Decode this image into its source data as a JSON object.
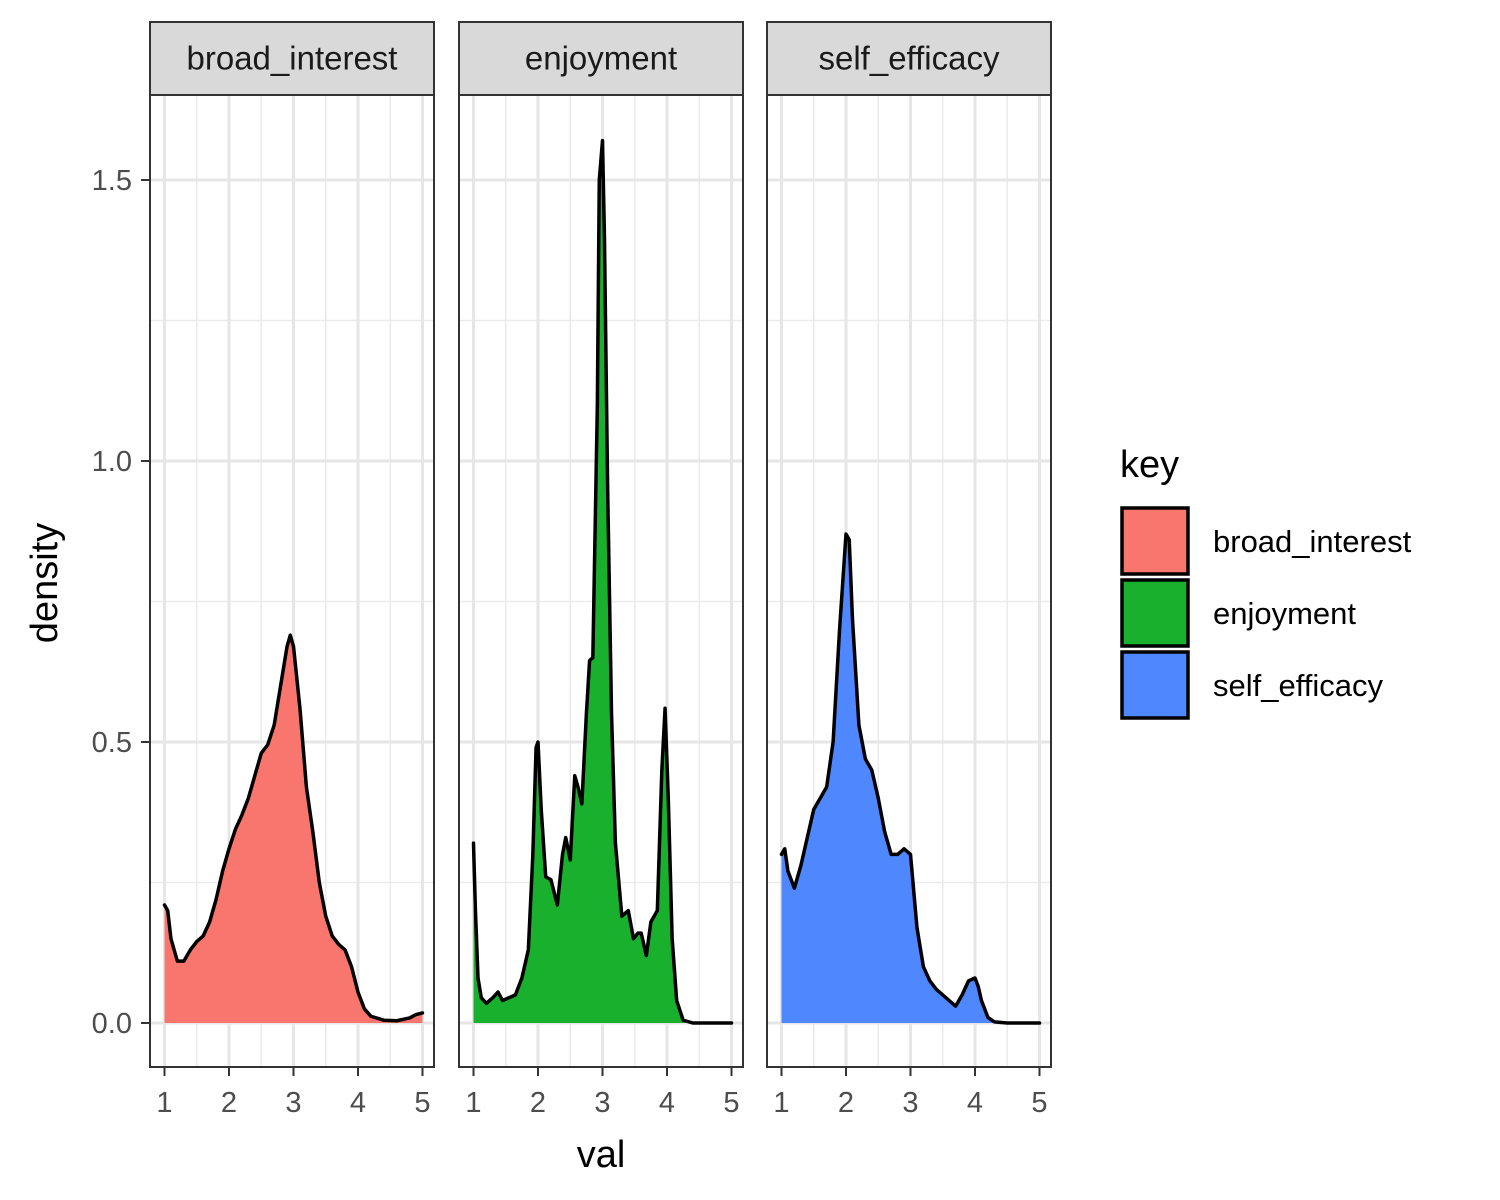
{
  "chart_data": {
    "type": "area",
    "xlabel": "val",
    "ylabel": "density",
    "xlim": [
      1,
      5
    ],
    "ylim": [
      0,
      1.65
    ],
    "x_ticks": [
      "1",
      "2",
      "3",
      "4",
      "5"
    ],
    "y_ticks": [
      "0.0",
      "0.5",
      "1.0",
      "1.5"
    ],
    "grid": true,
    "legend": {
      "title": "key",
      "position": "right"
    },
    "panels": [
      {
        "name": "broad_interest",
        "color": "#F8766D",
        "points": [
          [
            1,
            0.21
          ],
          [
            1.05,
            0.2
          ],
          [
            1.1,
            0.15
          ],
          [
            1.2,
            0.11
          ],
          [
            1.3,
            0.11
          ],
          [
            1.4,
            0.13
          ],
          [
            1.5,
            0.145
          ],
          [
            1.6,
            0.155
          ],
          [
            1.7,
            0.18
          ],
          [
            1.8,
            0.22
          ],
          [
            1.9,
            0.27
          ],
          [
            2,
            0.31
          ],
          [
            2.1,
            0.345
          ],
          [
            2.2,
            0.37
          ],
          [
            2.3,
            0.4
          ],
          [
            2.4,
            0.44
          ],
          [
            2.5,
            0.48
          ],
          [
            2.6,
            0.495
          ],
          [
            2.7,
            0.53
          ],
          [
            2.8,
            0.6
          ],
          [
            2.9,
            0.67
          ],
          [
            2.95,
            0.69
          ],
          [
            3,
            0.67
          ],
          [
            3.1,
            0.56
          ],
          [
            3.2,
            0.42
          ],
          [
            3.3,
            0.34
          ],
          [
            3.4,
            0.25
          ],
          [
            3.5,
            0.19
          ],
          [
            3.6,
            0.155
          ],
          [
            3.7,
            0.14
          ],
          [
            3.8,
            0.13
          ],
          [
            3.9,
            0.1
          ],
          [
            4,
            0.055
          ],
          [
            4.1,
            0.025
          ],
          [
            4.2,
            0.012
          ],
          [
            4.4,
            0.005
          ],
          [
            4.6,
            0.004
          ],
          [
            4.8,
            0.009
          ],
          [
            4.9,
            0.015
          ],
          [
            5,
            0.018
          ]
        ]
      },
      {
        "name": "enjoyment",
        "color": "#19B02E",
        "points": [
          [
            1,
            0.32
          ],
          [
            1.03,
            0.2
          ],
          [
            1.07,
            0.08
          ],
          [
            1.12,
            0.045
          ],
          [
            1.2,
            0.035
          ],
          [
            1.3,
            0.045
          ],
          [
            1.38,
            0.055
          ],
          [
            1.45,
            0.04
          ],
          [
            1.55,
            0.045
          ],
          [
            1.65,
            0.05
          ],
          [
            1.75,
            0.08
          ],
          [
            1.85,
            0.13
          ],
          [
            1.92,
            0.3
          ],
          [
            1.97,
            0.49
          ],
          [
            2,
            0.5
          ],
          [
            2.05,
            0.38
          ],
          [
            2.12,
            0.26
          ],
          [
            2.2,
            0.255
          ],
          [
            2.3,
            0.21
          ],
          [
            2.38,
            0.3
          ],
          [
            2.43,
            0.33
          ],
          [
            2.5,
            0.29
          ],
          [
            2.57,
            0.44
          ],
          [
            2.62,
            0.42
          ],
          [
            2.68,
            0.39
          ],
          [
            2.75,
            0.55
          ],
          [
            2.8,
            0.645
          ],
          [
            2.85,
            0.65
          ],
          [
            2.92,
            1.1
          ],
          [
            2.95,
            1.5
          ],
          [
            3,
            1.57
          ],
          [
            3.03,
            1.4
          ],
          [
            3.08,
            0.95
          ],
          [
            3.14,
            0.55
          ],
          [
            3.2,
            0.32
          ],
          [
            3.3,
            0.19
          ],
          [
            3.4,
            0.2
          ],
          [
            3.48,
            0.15
          ],
          [
            3.55,
            0.16
          ],
          [
            3.6,
            0.16
          ],
          [
            3.68,
            0.12
          ],
          [
            3.75,
            0.18
          ],
          [
            3.85,
            0.2
          ],
          [
            3.92,
            0.45
          ],
          [
            3.97,
            0.56
          ],
          [
            4.02,
            0.4
          ],
          [
            4.08,
            0.15
          ],
          [
            4.15,
            0.04
          ],
          [
            4.25,
            0.005
          ],
          [
            4.4,
            0
          ],
          [
            5,
            0
          ]
        ]
      },
      {
        "name": "self_efficacy",
        "color": "#4E87FE",
        "points": [
          [
            1,
            0.3
          ],
          [
            1.05,
            0.31
          ],
          [
            1.1,
            0.27
          ],
          [
            1.2,
            0.24
          ],
          [
            1.3,
            0.28
          ],
          [
            1.4,
            0.33
          ],
          [
            1.5,
            0.38
          ],
          [
            1.6,
            0.4
          ],
          [
            1.7,
            0.42
          ],
          [
            1.8,
            0.5
          ],
          [
            1.9,
            0.7
          ],
          [
            2,
            0.87
          ],
          [
            2.05,
            0.86
          ],
          [
            2.1,
            0.72
          ],
          [
            2.2,
            0.53
          ],
          [
            2.3,
            0.47
          ],
          [
            2.4,
            0.45
          ],
          [
            2.5,
            0.4
          ],
          [
            2.6,
            0.34
          ],
          [
            2.7,
            0.3
          ],
          [
            2.8,
            0.3
          ],
          [
            2.9,
            0.31
          ],
          [
            3,
            0.3
          ],
          [
            3.1,
            0.17
          ],
          [
            3.2,
            0.1
          ],
          [
            3.3,
            0.075
          ],
          [
            3.4,
            0.06
          ],
          [
            3.5,
            0.05
          ],
          [
            3.6,
            0.04
          ],
          [
            3.7,
            0.03
          ],
          [
            3.8,
            0.05
          ],
          [
            3.9,
            0.075
          ],
          [
            4,
            0.08
          ],
          [
            4.05,
            0.065
          ],
          [
            4.1,
            0.04
          ],
          [
            4.2,
            0.01
          ],
          [
            4.3,
            0.002
          ],
          [
            4.5,
            0
          ],
          [
            5,
            0
          ]
        ]
      }
    ]
  }
}
